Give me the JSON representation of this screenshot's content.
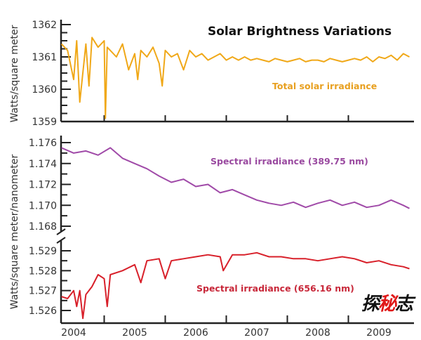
{
  "chart_data": [
    {
      "type": "line",
      "title": "Solar Brightness Variations",
      "ylabel": "Watts/square meter",
      "ylim": [
        1359,
        1362
      ],
      "yticks": [
        "1362",
        "1361",
        "1360",
        "1359"
      ],
      "series": [
        {
          "name": "Total solar irradiance",
          "color": "#f0a818",
          "x": [
            2003.8,
            2003.9,
            2004.0,
            2004.05,
            2004.1,
            2004.2,
            2004.25,
            2004.3,
            2004.4,
            2004.5,
            2004.52,
            2004.55,
            2004.6,
            2004.7,
            2004.8,
            2004.9,
            2005.0,
            2005.05,
            2005.1,
            2005.2,
            2005.3,
            2005.4,
            2005.45,
            2005.5,
            2005.6,
            2005.7,
            2005.8,
            2005.9,
            2006.0,
            2006.1,
            2006.2,
            2006.3,
            2006.4,
            2006.5,
            2006.6,
            2006.7,
            2006.8,
            2006.9,
            2007.0,
            2007.1,
            2007.2,
            2007.3,
            2007.4,
            2007.5,
            2007.6,
            2007.7,
            2007.8,
            2007.9,
            2008.0,
            2008.1,
            2008.2,
            2008.3,
            2008.4,
            2008.5,
            2008.6,
            2008.7,
            2008.8,
            2008.9,
            2009.0,
            2009.1,
            2009.2,
            2009.3,
            2009.4,
            2009.5
          ],
          "y": [
            1361.4,
            1361.2,
            1360.3,
            1361.5,
            1359.6,
            1361.4,
            1360.1,
            1361.6,
            1361.3,
            1361.5,
            1359.1,
            1361.3,
            1361.2,
            1361.0,
            1361.4,
            1360.6,
            1361.1,
            1360.3,
            1361.2,
            1361.0,
            1361.3,
            1360.8,
            1360.1,
            1361.2,
            1361.0,
            1361.1,
            1360.6,
            1361.2,
            1361.0,
            1361.1,
            1360.9,
            1361.0,
            1361.1,
            1360.9,
            1361.0,
            1360.9,
            1361.0,
            1360.9,
            1360.95,
            1360.9,
            1360.85,
            1360.95,
            1360.9,
            1360.85,
            1360.9,
            1360.95,
            1360.85,
            1360.9,
            1360.9,
            1360.85,
            1360.95,
            1360.9,
            1360.85,
            1360.9,
            1360.95,
            1360.9,
            1361.0,
            1360.85,
            1361.0,
            1360.95,
            1361.05,
            1360.9,
            1361.1,
            1361.0
          ]
        }
      ]
    },
    {
      "type": "line",
      "ylabel": "Watts/square meter/nanometer",
      "ylim": [
        1.1675,
        1.1765
      ],
      "yticks": [
        "1.176",
        "1.174",
        "1.172",
        "1.170",
        "1.168"
      ],
      "series": [
        {
          "name": "Spectral irradiance (389.75 nm)",
          "color": "#a04aa8",
          "x": [
            2003.8,
            2004.0,
            2004.2,
            2004.4,
            2004.6,
            2004.8,
            2005.0,
            2005.2,
            2005.4,
            2005.6,
            2005.8,
            2006.0,
            2006.2,
            2006.4,
            2006.6,
            2006.8,
            2007.0,
            2007.2,
            2007.4,
            2007.6,
            2007.8,
            2008.0,
            2008.2,
            2008.4,
            2008.6,
            2008.8,
            2009.0,
            2009.2,
            2009.4,
            2009.5
          ],
          "y": [
            1.1755,
            1.175,
            1.1752,
            1.1748,
            1.1755,
            1.1745,
            1.174,
            1.1735,
            1.1728,
            1.1722,
            1.1725,
            1.1718,
            1.172,
            1.1712,
            1.1715,
            1.171,
            1.1705,
            1.1702,
            1.17,
            1.1703,
            1.1698,
            1.1702,
            1.1705,
            1.17,
            1.1703,
            1.1698,
            1.17,
            1.1705,
            1.17,
            1.1697
          ]
        }
      ]
    },
    {
      "type": "line",
      "ylim": [
        1.5255,
        1.5292
      ],
      "yticks": [
        "1.529",
        "1.528",
        "1.527",
        "1.526"
      ],
      "xticks": [
        "2004",
        "2005",
        "2006",
        "2007",
        "2008",
        "2009"
      ],
      "series": [
        {
          "name": "Spectral irradiance (656.16 nm)",
          "color": "#d8202a",
          "x": [
            2003.8,
            2003.9,
            2004.0,
            2004.05,
            2004.1,
            2004.15,
            2004.2,
            2004.3,
            2004.4,
            2004.5,
            2004.55,
            2004.6,
            2004.8,
            2005.0,
            2005.1,
            2005.2,
            2005.4,
            2005.5,
            2005.6,
            2005.8,
            2006.0,
            2006.2,
            2006.4,
            2006.45,
            2006.6,
            2006.8,
            2007.0,
            2007.2,
            2007.4,
            2007.6,
            2007.8,
            2008.0,
            2008.2,
            2008.4,
            2008.6,
            2008.8,
            2009.0,
            2009.2,
            2009.4,
            2009.5
          ],
          "y": [
            1.5267,
            1.5266,
            1.527,
            1.5262,
            1.527,
            1.5256,
            1.5268,
            1.5272,
            1.5278,
            1.5276,
            1.5262,
            1.5278,
            1.528,
            1.5283,
            1.5274,
            1.5285,
            1.5286,
            1.5276,
            1.5285,
            1.5286,
            1.5287,
            1.5288,
            1.5287,
            1.528,
            1.5288,
            1.5288,
            1.5289,
            1.5287,
            1.5287,
            1.5286,
            1.5286,
            1.5285,
            1.5286,
            1.5287,
            1.5286,
            1.5284,
            1.5285,
            1.5283,
            1.5282,
            1.5281
          ]
        }
      ]
    }
  ],
  "watermark": "探秘志"
}
